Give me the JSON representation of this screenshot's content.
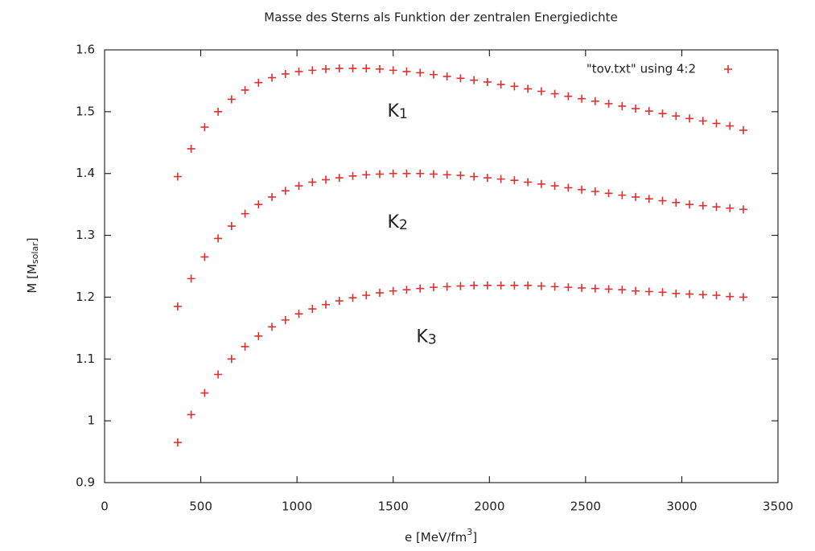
{
  "chart_data": {
    "type": "scatter",
    "title": "Masse des Sterns als Funktion der zentralen Energiedichte",
    "xlabel": [
      "e [MeV/fm",
      "3",
      "]"
    ],
    "ylabel": [
      "M [M",
      "solar",
      "]"
    ],
    "x": [
      380,
      450,
      520,
      590,
      660,
      730,
      800,
      870,
      940,
      1010,
      1080,
      1150,
      1220,
      1290,
      1360,
      1430,
      1500,
      1570,
      1640,
      1710,
      1780,
      1850,
      1920,
      1990,
      2060,
      2130,
      2200,
      2270,
      2340,
      2410,
      2480,
      2550,
      2620,
      2690,
      2760,
      2830,
      2900,
      2970,
      3040,
      3110,
      3180,
      3250,
      3320
    ],
    "series": [
      {
        "name": "\"tov.txt\" using 4:2",
        "color": "#e0302f",
        "values": [
          1.395,
          1.44,
          1.475,
          1.5,
          1.52,
          1.535,
          1.547,
          1.555,
          1.561,
          1.565,
          1.567,
          1.569,
          1.57,
          1.57,
          1.57,
          1.569,
          1.567,
          1.565,
          1.563,
          1.56,
          1.557,
          1.554,
          1.551,
          1.548,
          1.544,
          1.541,
          1.537,
          1.533,
          1.529,
          1.525,
          1.521,
          1.517,
          1.513,
          1.509,
          1.505,
          1.501,
          1.497,
          1.493,
          1.489,
          1.485,
          1.481,
          1.477,
          1.47
        ]
      },
      {
        "color": "#e0302f",
        "values": [
          1.185,
          1.23,
          1.265,
          1.295,
          1.315,
          1.335,
          1.35,
          1.362,
          1.372,
          1.38,
          1.386,
          1.39,
          1.393,
          1.396,
          1.398,
          1.399,
          1.4,
          1.4,
          1.4,
          1.399,
          1.398,
          1.397,
          1.395,
          1.393,
          1.391,
          1.389,
          1.386,
          1.383,
          1.38,
          1.377,
          1.374,
          1.371,
          1.368,
          1.365,
          1.362,
          1.359,
          1.356,
          1.353,
          1.35,
          1.348,
          1.346,
          1.344,
          1.342
        ]
      },
      {
        "color": "#e0302f",
        "values": [
          0.965,
          1.01,
          1.045,
          1.075,
          1.1,
          1.12,
          1.137,
          1.152,
          1.163,
          1.173,
          1.181,
          1.188,
          1.194,
          1.199,
          1.203,
          1.207,
          1.21,
          1.212,
          1.214,
          1.216,
          1.217,
          1.218,
          1.219,
          1.219,
          1.219,
          1.219,
          1.219,
          1.218,
          1.217,
          1.216,
          1.215,
          1.214,
          1.213,
          1.212,
          1.21,
          1.209,
          1.208,
          1.206,
          1.205,
          1.204,
          1.203,
          1.201,
          1.2
        ]
      }
    ],
    "annotations": [
      {
        "text": "K",
        "sub": "1",
        "x": 1470,
        "y": 1.5
      },
      {
        "text": "K",
        "sub": "2",
        "x": 1470,
        "y": 1.32
      },
      {
        "text": "K",
        "sub": "3",
        "x": 1620,
        "y": 1.135
      }
    ],
    "xlim": [
      0,
      3500
    ],
    "xticks": [
      0,
      500,
      1000,
      1500,
      2000,
      2500,
      3000,
      3500
    ],
    "ylim": [
      0.9,
      1.6
    ],
    "yticks": [
      0.9,
      1,
      1.1,
      1.2,
      1.3,
      1.4,
      1.5,
      1.6
    ],
    "grid": false,
    "legend": "top-right"
  }
}
